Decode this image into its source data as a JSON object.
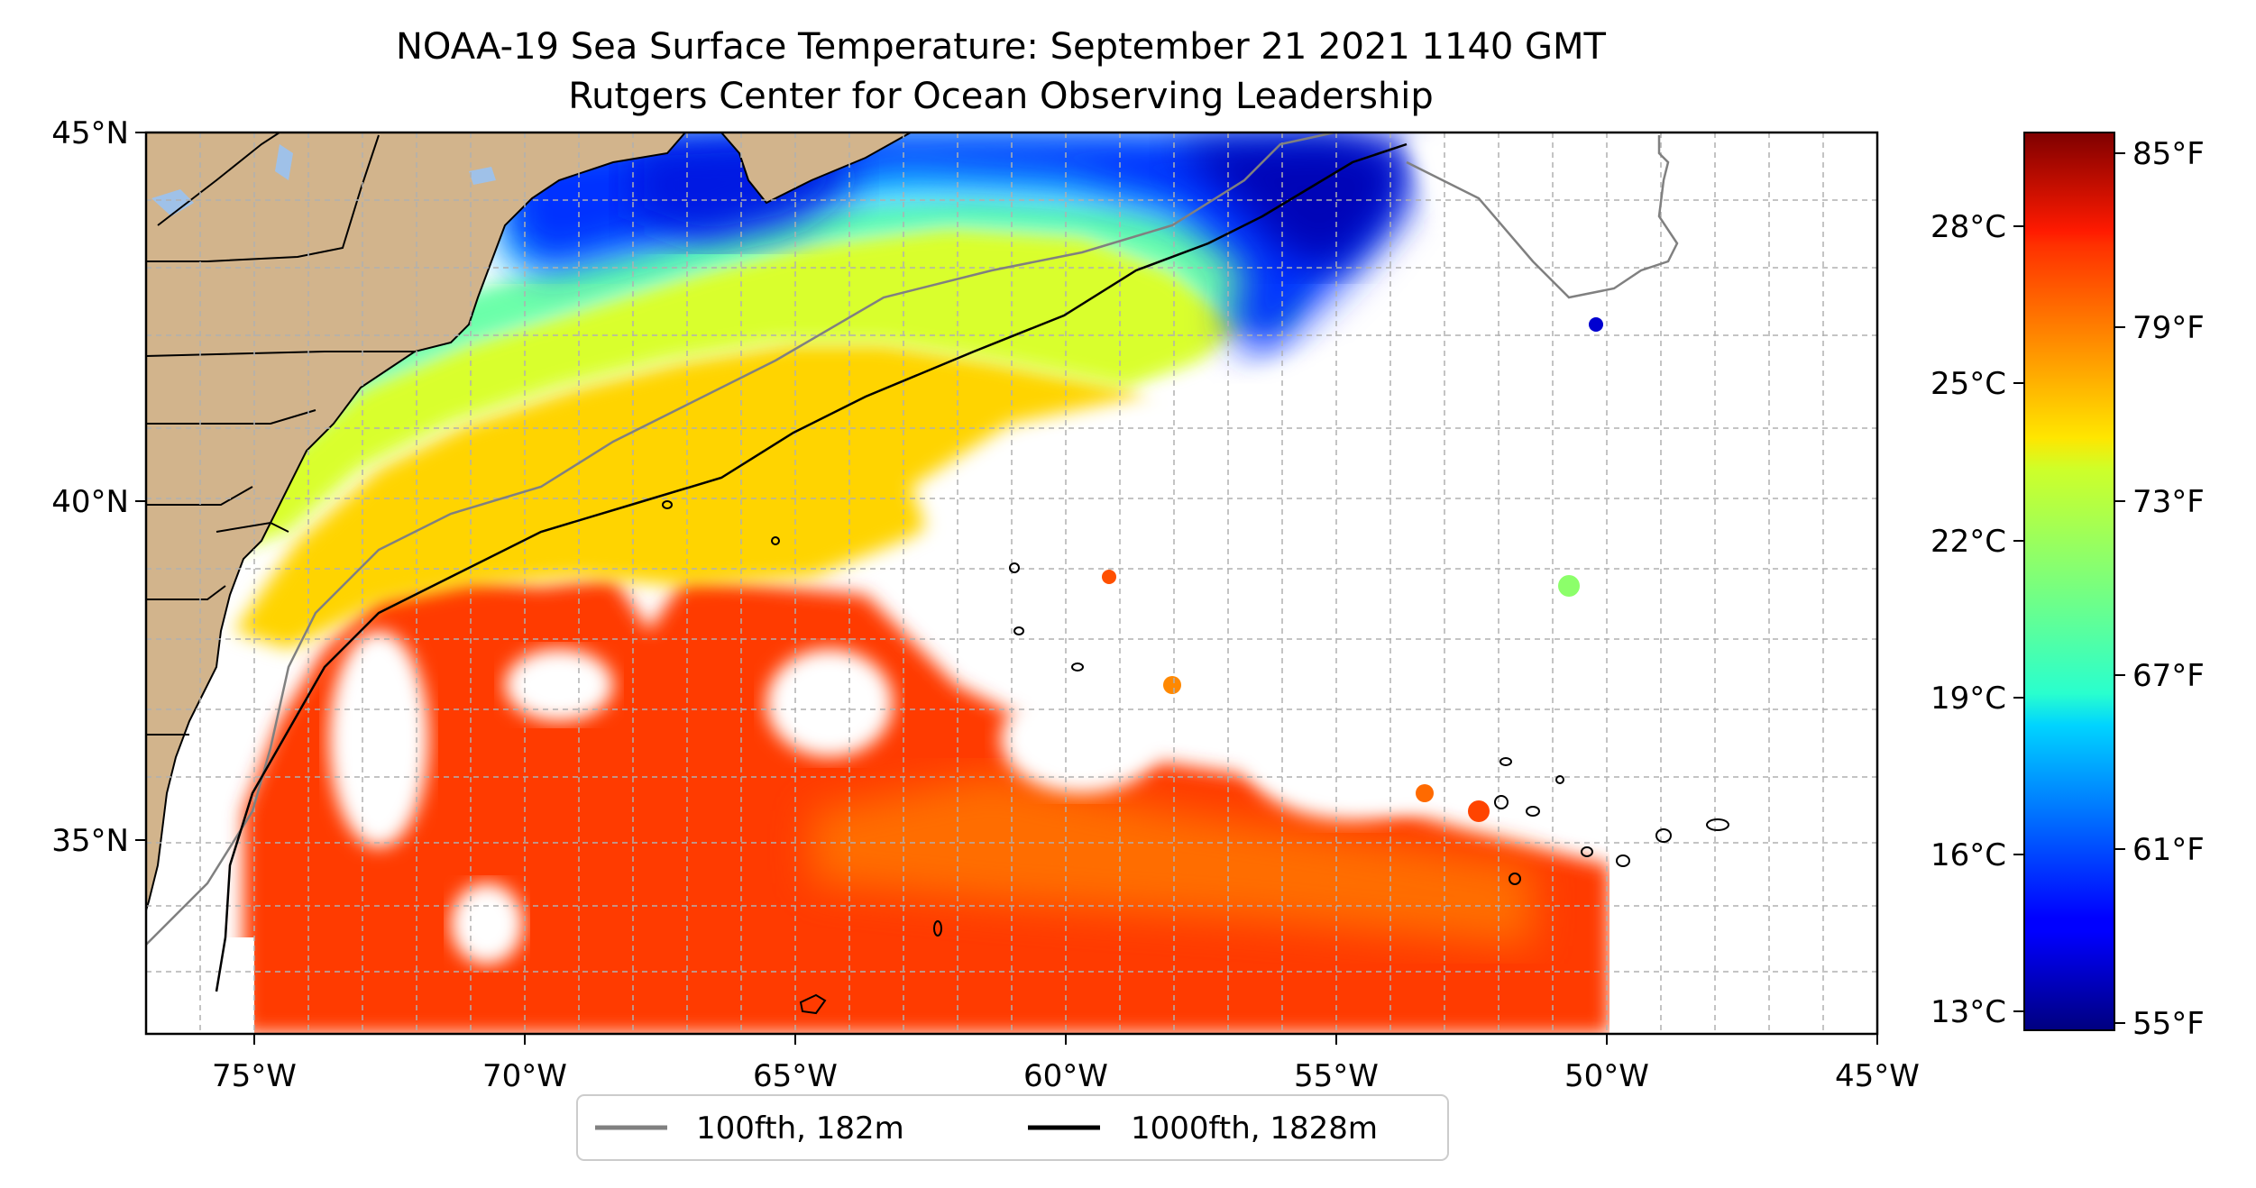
{
  "title": {
    "line1": "NOAA-19 Sea Surface Temperature: September 21 2021 1140 GMT",
    "line2": "Rutgers Center for Ocean Observing Leadership"
  },
  "map": {
    "lon_range": [
      -77,
      -45
    ],
    "lat_range": [
      32.2,
      45
    ],
    "lat_ticks": [
      {
        "value": 45,
        "label": "45°N"
      },
      {
        "value": 40,
        "label": "40°N"
      },
      {
        "value": 35,
        "label": "35°N"
      }
    ],
    "lon_ticks": [
      {
        "value": -75,
        "label": "75°W"
      },
      {
        "value": -70,
        "label": "70°W"
      },
      {
        "value": -65,
        "label": "65°W"
      },
      {
        "value": -60,
        "label": "60°W"
      },
      {
        "value": -55,
        "label": "55°W"
      },
      {
        "value": -50,
        "label": "50°W"
      },
      {
        "value": -45,
        "label": "45°W"
      }
    ],
    "gridlines": true,
    "colors": {
      "land": "#d2b48c",
      "lakes": "#9fc1e8",
      "no_data": "#ffffff",
      "grid": "#b0b0b0"
    }
  },
  "colorbar": {
    "colormap": "jet",
    "range_f": [
      55,
      86
    ],
    "celsius_ticks": [
      {
        "value": 28,
        "label": "28°C"
      },
      {
        "value": 25,
        "label": "25°C"
      },
      {
        "value": 22,
        "label": "22°C"
      },
      {
        "value": 19,
        "label": "19°C"
      },
      {
        "value": 16,
        "label": "16°C"
      },
      {
        "value": 13,
        "label": "13°C"
      }
    ],
    "fahrenheit_ticks": [
      {
        "value": 85,
        "label": "85°F"
      },
      {
        "value": 79,
        "label": "79°F"
      },
      {
        "value": 73,
        "label": "73°F"
      },
      {
        "value": 67,
        "label": "67°F"
      },
      {
        "value": 61,
        "label": "61°F"
      },
      {
        "value": 55,
        "label": "55°F"
      }
    ]
  },
  "legend": {
    "position": "bottom-center",
    "items": [
      {
        "label": "100fth, 182m",
        "color": "#808080"
      },
      {
        "label": "1000fth, 1828m",
        "color": "#000000"
      }
    ]
  }
}
